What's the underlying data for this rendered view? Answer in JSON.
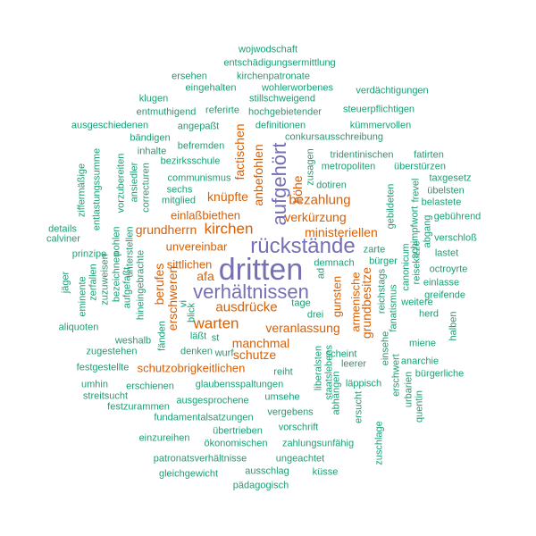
{
  "colors": {
    "large": "#7570b3",
    "medium": "#d95f02",
    "small": "#1b9e77"
  },
  "words": [
    {
      "text": "dritten",
      "tier": "large",
      "vertical": false
    },
    {
      "text": "rückstände",
      "tier": "large",
      "vertical": false
    },
    {
      "text": "verhältnissen",
      "tier": "large",
      "vertical": false
    },
    {
      "text": "aufgehört",
      "tier": "large",
      "vertical": true
    },
    {
      "text": "kirchen",
      "tier": "medium",
      "vertical": false
    },
    {
      "text": "ausdrücke",
      "tier": "medium",
      "vertical": false
    },
    {
      "text": "warten",
      "tier": "medium",
      "vertical": false
    },
    {
      "text": "bezahlung",
      "tier": "medium",
      "vertical": false
    },
    {
      "text": "verkürzung",
      "tier": "medium",
      "vertical": false
    },
    {
      "text": "einlaßbiethen",
      "tier": "medium",
      "vertical": false
    },
    {
      "text": "knüpfte",
      "tier": "medium",
      "vertical": false
    },
    {
      "text": "grundherrn",
      "tier": "medium",
      "vertical": false
    },
    {
      "text": "ministeriellen",
      "tier": "medium",
      "vertical": false
    },
    {
      "text": "unvereinbar",
      "tier": "medium",
      "vertical": false
    },
    {
      "text": "sittlichen",
      "tier": "medium",
      "vertical": false
    },
    {
      "text": "afa",
      "tier": "medium",
      "vertical": false
    },
    {
      "text": "veranlassung",
      "tier": "medium",
      "vertical": false
    },
    {
      "text": "manchmal",
      "tier": "medium",
      "vertical": false
    },
    {
      "text": "schutze",
      "tier": "medium",
      "vertical": false
    },
    {
      "text": "schutzobrigkeitlichen",
      "tier": "medium",
      "vertical": false
    },
    {
      "text": "factischen",
      "tier": "medium",
      "vertical": true
    },
    {
      "text": "anbefohlen",
      "tier": "medium",
      "vertical": true
    },
    {
      "text": "höhe",
      "tier": "medium",
      "vertical": true
    },
    {
      "text": "berufes",
      "tier": "medium",
      "vertical": true
    },
    {
      "text": "erschweren",
      "tier": "medium",
      "vertical": true
    },
    {
      "text": "gunsten",
      "tier": "medium",
      "vertical": true
    },
    {
      "text": "armenische",
      "tier": "medium",
      "vertical": true
    },
    {
      "text": "grundbesitze",
      "tier": "medium",
      "vertical": true
    },
    {
      "text": "wojwodschaft",
      "tier": "small",
      "vertical": false
    },
    {
      "text": "entschädigungsermittlung",
      "tier": "small",
      "vertical": false
    },
    {
      "text": "kirchenpatronate",
      "tier": "small",
      "vertical": false
    },
    {
      "text": "ersehen",
      "tier": "small",
      "vertical": false
    },
    {
      "text": "eingehalten",
      "tier": "small",
      "vertical": false
    },
    {
      "text": "wohlerworbenes",
      "tier": "small",
      "vertical": false
    },
    {
      "text": "stillschweigend",
      "tier": "small",
      "vertical": false
    },
    {
      "text": "verdächtigungen",
      "tier": "small",
      "vertical": false
    },
    {
      "text": "klugen",
      "tier": "small",
      "vertical": false
    },
    {
      "text": "referirte",
      "tier": "small",
      "vertical": false
    },
    {
      "text": "hochgebietender",
      "tier": "small",
      "vertical": false
    },
    {
      "text": "steuerpflichtigen",
      "tier": "small",
      "vertical": false
    },
    {
      "text": "entmuthigend",
      "tier": "small",
      "vertical": false
    },
    {
      "text": "ausgeschiedenen",
      "tier": "small",
      "vertical": false
    },
    {
      "text": "angepaßt",
      "tier": "small",
      "vertical": false
    },
    {
      "text": "definitionen",
      "tier": "small",
      "vertical": false
    },
    {
      "text": "kümmervollen",
      "tier": "small",
      "vertical": false
    },
    {
      "text": "bändigen",
      "tier": "small",
      "vertical": false
    },
    {
      "text": "conkursausschreibung",
      "tier": "small",
      "vertical": false
    },
    {
      "text": "inhalte",
      "tier": "small",
      "vertical": false
    },
    {
      "text": "befremden",
      "tier": "small",
      "vertical": false
    },
    {
      "text": "tridentinischen",
      "tier": "small",
      "vertical": false
    },
    {
      "text": "fatirten",
      "tier": "small",
      "vertical": false
    },
    {
      "text": "bezirksschule",
      "tier": "small",
      "vertical": false
    },
    {
      "text": "metropoliten",
      "tier": "small",
      "vertical": false
    },
    {
      "text": "überstürzen",
      "tier": "small",
      "vertical": false
    },
    {
      "text": "communismus",
      "tier": "small",
      "vertical": false
    },
    {
      "text": "taxgesetz",
      "tier": "small",
      "vertical": false
    },
    {
      "text": "sechs",
      "tier": "small",
      "vertical": false
    },
    {
      "text": "dotiren",
      "tier": "small",
      "vertical": false
    },
    {
      "text": "übelsten",
      "tier": "small",
      "vertical": false
    },
    {
      "text": "mitglied",
      "tier": "small",
      "vertical": false
    },
    {
      "text": "belastete",
      "tier": "small",
      "vertical": false
    },
    {
      "text": "gebührend",
      "tier": "small",
      "vertical": false
    },
    {
      "text": "details",
      "tier": "small",
      "vertical": false
    },
    {
      "text": "calviner",
      "tier": "small",
      "vertical": false
    },
    {
      "text": "verschloß",
      "tier": "small",
      "vertical": false
    },
    {
      "text": "zarte",
      "tier": "small",
      "vertical": false
    },
    {
      "text": "lastet",
      "tier": "small",
      "vertical": false
    },
    {
      "text": "prinzipe",
      "tier": "small",
      "vertical": false
    },
    {
      "text": "demnach",
      "tier": "small",
      "vertical": false
    },
    {
      "text": "bürger",
      "tier": "small",
      "vertical": false
    },
    {
      "text": "octroyrte",
      "tier": "small",
      "vertical": false
    },
    {
      "text": "einlasse",
      "tier": "small",
      "vertical": false
    },
    {
      "text": "greifende",
      "tier": "small",
      "vertical": false
    },
    {
      "text": "tage",
      "tier": "small",
      "vertical": false
    },
    {
      "text": "drei",
      "tier": "small",
      "vertical": false
    },
    {
      "text": "weitere",
      "tier": "small",
      "vertical": false
    },
    {
      "text": "herd",
      "tier": "small",
      "vertical": false
    },
    {
      "text": "aliquoten",
      "tier": "small",
      "vertical": false
    },
    {
      "text": "miene",
      "tier": "small",
      "vertical": false
    },
    {
      "text": "weshalb",
      "tier": "small",
      "vertical": false
    },
    {
      "text": "läßt",
      "tier": "small",
      "vertical": false
    },
    {
      "text": "st",
      "tier": "small",
      "vertical": false
    },
    {
      "text": "zugestehen",
      "tier": "small",
      "vertical": false
    },
    {
      "text": "denken",
      "tier": "small",
      "vertical": false
    },
    {
      "text": "wurf",
      "tier": "small",
      "vertical": false
    },
    {
      "text": "scheint",
      "tier": "small",
      "vertical": false
    },
    {
      "text": "anarchie",
      "tier": "small",
      "vertical": false
    },
    {
      "text": "festgestellte",
      "tier": "small",
      "vertical": false
    },
    {
      "text": "leerer",
      "tier": "small",
      "vertical": false
    },
    {
      "text": "bürgerliche",
      "tier": "small",
      "vertical": false
    },
    {
      "text": "reiht",
      "tier": "small",
      "vertical": false
    },
    {
      "text": "umhin",
      "tier": "small",
      "vertical": false
    },
    {
      "text": "erschienen",
      "tier": "small",
      "vertical": false
    },
    {
      "text": "glaubensspaltungen",
      "tier": "small",
      "vertical": false
    },
    {
      "text": "läppisch",
      "tier": "small",
      "vertical": false
    },
    {
      "text": "streitsucht",
      "tier": "small",
      "vertical": false
    },
    {
      "text": "ausgesprochene",
      "tier": "small",
      "vertical": false
    },
    {
      "text": "umsehe",
      "tier": "small",
      "vertical": false
    },
    {
      "text": "festzurammen",
      "tier": "small",
      "vertical": false
    },
    {
      "text": "vergebens",
      "tier": "small",
      "vertical": false
    },
    {
      "text": "fundamentalsatzungen",
      "tier": "small",
      "vertical": false
    },
    {
      "text": "übertrieben",
      "tier": "small",
      "vertical": false
    },
    {
      "text": "vorschrift",
      "tier": "small",
      "vertical": false
    },
    {
      "text": "einzureihen",
      "tier": "small",
      "vertical": false
    },
    {
      "text": "ökonomischen",
      "tier": "small",
      "vertical": false
    },
    {
      "text": "zahlungsunfähig",
      "tier": "small",
      "vertical": false
    },
    {
      "text": "patronatsverhältnisse",
      "tier": "small",
      "vertical": false
    },
    {
      "text": "ungeachtet",
      "tier": "small",
      "vertical": false
    },
    {
      "text": "gleichgewicht",
      "tier": "small",
      "vertical": false
    },
    {
      "text": "ausschlag",
      "tier": "small",
      "vertical": false
    },
    {
      "text": "küsse",
      "tier": "small",
      "vertical": false
    },
    {
      "text": "pädagogisch",
      "tier": "small",
      "vertical": false
    },
    {
      "text": "ziffermäßige",
      "tier": "small",
      "vertical": true
    },
    {
      "text": "entlastungssumme",
      "tier": "small",
      "vertical": true
    },
    {
      "text": "vorzubereiten",
      "tier": "small",
      "vertical": true
    },
    {
      "text": "ansiedler",
      "tier": "small",
      "vertical": true
    },
    {
      "text": "correcturen",
      "tier": "small",
      "vertical": true
    },
    {
      "text": "eminente",
      "tier": "small",
      "vertical": true
    },
    {
      "text": "zerfallen",
      "tier": "small",
      "vertical": true
    },
    {
      "text": "zuzuweisen",
      "tier": "small",
      "vertical": true
    },
    {
      "text": "bezeichnen",
      "tier": "small",
      "vertical": true
    },
    {
      "text": "pohlen",
      "tier": "small",
      "vertical": true
    },
    {
      "text": "aufgefaßt",
      "tier": "small",
      "vertical": true
    },
    {
      "text": "unterstellen",
      "tier": "small",
      "vertical": true
    },
    {
      "text": "hineingebrachte",
      "tier": "small",
      "vertical": true
    },
    {
      "text": "jäger",
      "tier": "small",
      "vertical": true
    },
    {
      "text": "vi",
      "tier": "small",
      "vertical": true
    },
    {
      "text": "blick",
      "tier": "small",
      "vertical": true
    },
    {
      "text": "fänden",
      "tier": "small",
      "vertical": true
    },
    {
      "text": "zusagen",
      "tier": "small",
      "vertical": true
    },
    {
      "text": "ad",
      "tier": "small",
      "vertical": true
    },
    {
      "text": "gebildeten",
      "tier": "small",
      "vertical": true
    },
    {
      "text": "frevel",
      "tier": "small",
      "vertical": true
    },
    {
      "text": "reisekizze",
      "tier": "small",
      "vertical": true
    },
    {
      "text": "abgang",
      "tier": "small",
      "vertical": true
    },
    {
      "text": "canonicum",
      "tier": "small",
      "vertical": true
    },
    {
      "text": "schimpfwort",
      "tier": "small",
      "vertical": true
    },
    {
      "text": "reichstags",
      "tier": "small",
      "vertical": true
    },
    {
      "text": "fanatismus",
      "tier": "small",
      "vertical": true
    },
    {
      "text": "halben",
      "tier": "small",
      "vertical": true
    },
    {
      "text": "liberalsten",
      "tier": "small",
      "vertical": true
    },
    {
      "text": "staatslebens",
      "tier": "small",
      "vertical": true
    },
    {
      "text": "einsehe",
      "tier": "small",
      "vertical": true
    },
    {
      "text": "erschwert",
      "tier": "small",
      "vertical": true
    },
    {
      "text": "urbarien",
      "tier": "small",
      "vertical": true
    },
    {
      "text": "quentin",
      "tier": "small",
      "vertical": true
    },
    {
      "text": "abhängen",
      "tier": "small",
      "vertical": true
    },
    {
      "text": "ersucht",
      "tier": "small",
      "vertical": true
    },
    {
      "text": "zuschlage",
      "tier": "small",
      "vertical": true
    }
  ]
}
